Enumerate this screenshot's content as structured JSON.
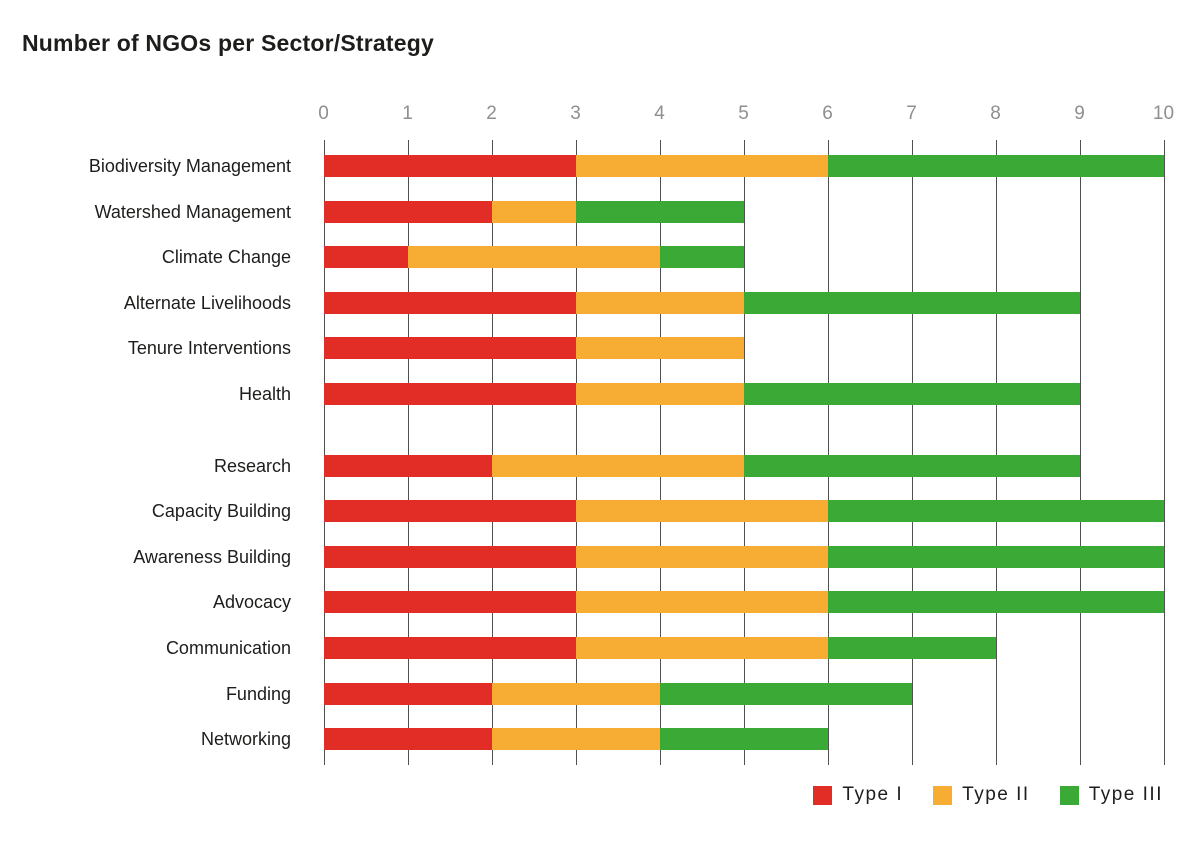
{
  "title": "Number of NGOs per Sector/Strategy",
  "colors": {
    "type1": "#e22d26",
    "type2": "#f7ad33",
    "type3": "#3aa935",
    "gridline": "#515151",
    "axis_text": "#8f8f8f",
    "text": "#1d1d1b",
    "background": "#ffffff"
  },
  "chart_data": {
    "type": "bar",
    "orientation": "horizontal",
    "stacked": true,
    "title": "Number of NGOs per Sector/Strategy",
    "categories": [
      "Biodiversity Management",
      "Watershed Management",
      "Climate Change",
      "Alternate Livelihoods",
      "Tenure Interventions",
      "Health",
      "Research",
      "Capacity Building",
      "Awareness Building",
      "Advocacy",
      "Communication",
      "Funding",
      "Networking"
    ],
    "series": [
      {
        "name": "Type I",
        "color": "#e22d26",
        "values": [
          3,
          2,
          1,
          3,
          3,
          3,
          2,
          3,
          3,
          3,
          3,
          2,
          2
        ]
      },
      {
        "name": "Type II",
        "color": "#f7ad33",
        "values": [
          3,
          1,
          3,
          2,
          2,
          2,
          3,
          3,
          3,
          3,
          3,
          2,
          2
        ]
      },
      {
        "name": "Type III",
        "color": "#3aa935",
        "values": [
          4,
          2,
          1,
          4,
          0,
          4,
          4,
          4,
          4,
          4,
          2,
          3,
          2
        ]
      }
    ],
    "totals": [
      10,
      5,
      5,
      9,
      5,
      9,
      9,
      10,
      10,
      10,
      8,
      7,
      6
    ],
    "x_ticks": [
      "0",
      "1",
      "2",
      "3",
      "4",
      "5",
      "6",
      "7",
      "8",
      "9",
      "10"
    ],
    "xlim": [
      0,
      10
    ],
    "xlabel": "",
    "ylabel": "",
    "grid": true,
    "axis_position": "top",
    "group_gap_after_index": 5,
    "legend_position": "bottom-right"
  },
  "legend": {
    "items": [
      {
        "label": "Type I",
        "color": "#e22d26"
      },
      {
        "label": "Type II",
        "color": "#f7ad33"
      },
      {
        "label": "Type III",
        "color": "#3aa935"
      }
    ]
  }
}
